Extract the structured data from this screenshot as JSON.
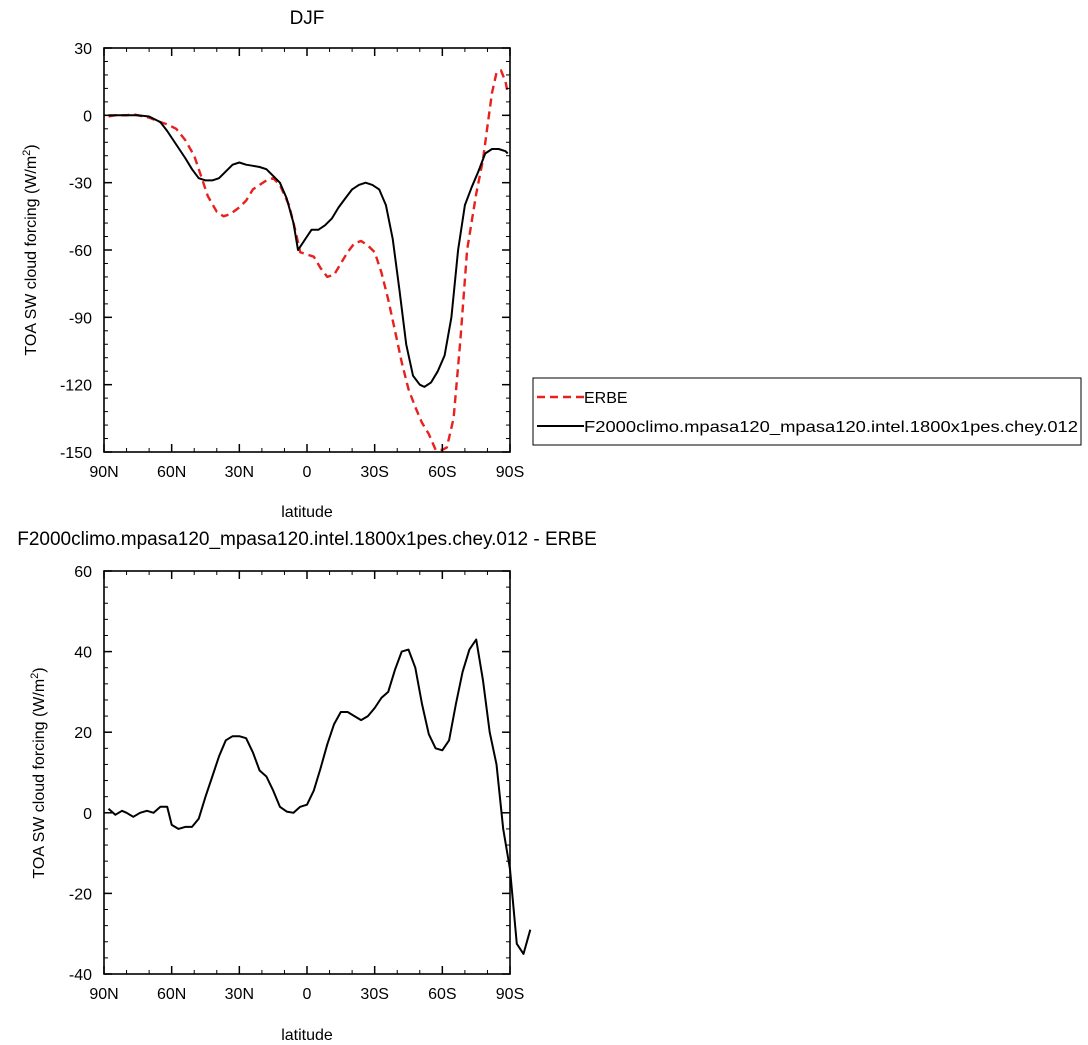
{
  "chart_data": [
    {
      "type": "line",
      "title": "DJF",
      "xlabel": "latitude",
      "ylabel": "TOA SW cloud forcing (W/m",
      "ylabel_sup": "2",
      "ylabel_end": ")",
      "xlim": [
        -90,
        90
      ],
      "ylim": [
        -150,
        30
      ],
      "x_ticks": [
        -90,
        -60,
        -30,
        0,
        30,
        60,
        90
      ],
      "x_tick_labels": [
        "90N",
        "60N",
        "30N",
        "0",
        "30S",
        "60S",
        "90S"
      ],
      "y_ticks": [
        30,
        0,
        -30,
        -60,
        -90,
        -120,
        -150
      ],
      "y_tick_labels": [
        "30",
        "0",
        "-30",
        "-60",
        "-90",
        "-120",
        "-150"
      ],
      "legend_position": "right",
      "series": [
        {
          "name": "ERBE",
          "color": "#e8201e",
          "dash": "dashed",
          "points": [
            [
              -88,
              -0.5
            ],
            [
              -85,
              0
            ],
            [
              -80,
              0
            ],
            [
              -77,
              0.5
            ],
            [
              -75,
              0
            ],
            [
              -70,
              -1
            ],
            [
              -65,
              -3
            ],
            [
              -62,
              -4
            ],
            [
              -58,
              -6
            ],
            [
              -54,
              -11
            ],
            [
              -50,
              -18
            ],
            [
              -47,
              -27
            ],
            [
              -44,
              -36
            ],
            [
              -40,
              -43
            ],
            [
              -37,
              -45
            ],
            [
              -34,
              -44
            ],
            [
              -30,
              -41
            ],
            [
              -27,
              -38
            ],
            [
              -24,
              -33
            ],
            [
              -21,
              -31
            ],
            [
              -18,
              -29
            ],
            [
              -15,
              -28
            ],
            [
              -12,
              -31
            ],
            [
              -8,
              -40
            ],
            [
              -5,
              -52
            ],
            [
              -3,
              -61
            ],
            [
              0,
              -62
            ],
            [
              3,
              -63
            ],
            [
              6,
              -68
            ],
            [
              9,
              -72
            ],
            [
              12,
              -71
            ],
            [
              15,
              -66
            ],
            [
              18,
              -61
            ],
            [
              21,
              -57
            ],
            [
              24,
              -56
            ],
            [
              27,
              -58
            ],
            [
              30,
              -61
            ],
            [
              33,
              -70
            ],
            [
              36,
              -82
            ],
            [
              39,
              -96
            ],
            [
              42,
              -110
            ],
            [
              45,
              -122
            ],
            [
              48,
              -130
            ],
            [
              51,
              -137
            ],
            [
              54,
              -142
            ],
            [
              57,
              -149
            ],
            [
              60,
              -149
            ],
            [
              62,
              -148
            ],
            [
              65,
              -135
            ],
            [
              68,
              -100
            ],
            [
              71,
              -60
            ],
            [
              75,
              -35
            ],
            [
              78,
              -20
            ],
            [
              80,
              -5
            ],
            [
              82,
              10
            ],
            [
              84,
              19
            ],
            [
              86,
              20
            ],
            [
              88,
              15
            ],
            [
              89,
              10
            ]
          ]
        },
        {
          "name": "F2000climo.mpasa120_mpasa120.intel.1800x1pes.chey.012",
          "color": "#000000",
          "dash": "solid",
          "points": [
            [
              -88,
              0
            ],
            [
              -85,
              0
            ],
            [
              -80,
              0
            ],
            [
              -77,
              0
            ],
            [
              -75,
              0
            ],
            [
              -70,
              -0.5
            ],
            [
              -65,
              -3
            ],
            [
              -62,
              -7
            ],
            [
              -58,
              -13
            ],
            [
              -54,
              -19
            ],
            [
              -51,
              -24
            ],
            [
              -48,
              -28
            ],
            [
              -45,
              -29
            ],
            [
              -42,
              -29
            ],
            [
              -39,
              -28
            ],
            [
              -36,
              -25
            ],
            [
              -33,
              -22
            ],
            [
              -30,
              -21
            ],
            [
              -27,
              -22
            ],
            [
              -24,
              -22.5
            ],
            [
              -21,
              -23
            ],
            [
              -18,
              -24
            ],
            [
              -15,
              -27
            ],
            [
              -12,
              -30
            ],
            [
              -9,
              -37
            ],
            [
              -6,
              -48
            ],
            [
              -4,
              -60
            ],
            [
              -2,
              -57
            ],
            [
              0,
              -54
            ],
            [
              2,
              -51
            ],
            [
              5,
              -51
            ],
            [
              8,
              -49
            ],
            [
              11,
              -46
            ],
            [
              14,
              -41
            ],
            [
              17,
              -37
            ],
            [
              20,
              -33
            ],
            [
              23,
              -31
            ],
            [
              26,
              -30
            ],
            [
              29,
              -31
            ],
            [
              32,
              -33
            ],
            [
              35,
              -40
            ],
            [
              38,
              -55
            ],
            [
              41,
              -78
            ],
            [
              44,
              -102
            ],
            [
              47,
              -116
            ],
            [
              50,
              -120
            ],
            [
              52,
              -121
            ],
            [
              55,
              -119
            ],
            [
              58,
              -114
            ],
            [
              61,
              -107
            ],
            [
              64,
              -90
            ],
            [
              67,
              -60
            ],
            [
              70,
              -40
            ],
            [
              73,
              -32
            ],
            [
              76,
              -25
            ],
            [
              79,
              -17
            ],
            [
              82,
              -15
            ],
            [
              85,
              -15
            ],
            [
              88,
              -16
            ],
            [
              89,
              -17
            ]
          ]
        }
      ]
    },
    {
      "type": "line",
      "title": "F2000climo.mpasa120_mpasa120.intel.1800x1pes.chey.012 - ERBE",
      "xlabel": "latitude",
      "ylabel": "TOA SW cloud forcing (W/m",
      "ylabel_sup": "2",
      "ylabel_end": ")",
      "xlim": [
        -90,
        90
      ],
      "ylim": [
        -40,
        60
      ],
      "x_ticks": [
        -90,
        -60,
        -30,
        0,
        30,
        60,
        90
      ],
      "x_tick_labels": [
        "90N",
        "60N",
        "30N",
        "0",
        "30S",
        "60S",
        "90S"
      ],
      "y_ticks": [
        60,
        40,
        20,
        0,
        -20,
        -40
      ],
      "y_tick_labels": [
        "60",
        "40",
        "20",
        "0",
        "-20",
        "-40"
      ],
      "series": [
        {
          "color": "#000000",
          "dash": "solid",
          "points": [
            [
              -88,
              1
            ],
            [
              -85,
              -0.5
            ],
            [
              -82,
              0.5
            ],
            [
              -80,
              0
            ],
            [
              -77,
              -1
            ],
            [
              -74,
              0
            ],
            [
              -71,
              0.5
            ],
            [
              -68,
              0
            ],
            [
              -65,
              1.5
            ],
            [
              -62,
              1.5
            ],
            [
              -60,
              -3
            ],
            [
              -57,
              -4
            ],
            [
              -54,
              -3.5
            ],
            [
              -51,
              -3.5
            ],
            [
              -48,
              -1.5
            ],
            [
              -45,
              4
            ],
            [
              -42,
              9
            ],
            [
              -39,
              14
            ],
            [
              -36,
              18
            ],
            [
              -33,
              19
            ],
            [
              -30,
              19
            ],
            [
              -27,
              18.5
            ],
            [
              -24,
              15
            ],
            [
              -21,
              10.5
            ],
            [
              -18,
              9
            ],
            [
              -15,
              5.5
            ],
            [
              -12,
              1.5
            ],
            [
              -9,
              0.3
            ],
            [
              -6,
              0
            ],
            [
              -3,
              1.5
            ],
            [
              0,
              2
            ],
            [
              3,
              5.5
            ],
            [
              6,
              11
            ],
            [
              9,
              17
            ],
            [
              12,
              22
            ],
            [
              15,
              25
            ],
            [
              18,
              25
            ],
            [
              21,
              24
            ],
            [
              24,
              23
            ],
            [
              27,
              24
            ],
            [
              30,
              26
            ],
            [
              33,
              28.5
            ],
            [
              36,
              30
            ],
            [
              39,
              35.5
            ],
            [
              42,
              40
            ],
            [
              45,
              40.5
            ],
            [
              48,
              36
            ],
            [
              51,
              27
            ],
            [
              54,
              19.5
            ],
            [
              57,
              16
            ],
            [
              60,
              15.5
            ],
            [
              63,
              18
            ],
            [
              66,
              27
            ],
            [
              69,
              35
            ],
            [
              72,
              40.5
            ],
            [
              75,
              43
            ],
            [
              78,
              33
            ],
            [
              81,
              20
            ],
            [
              84,
              12
            ],
            [
              87,
              -4
            ],
            [
              90,
              -14
            ],
            [
              93,
              -32.5
            ],
            [
              96,
              -35
            ],
            [
              99,
              -29
            ]
          ]
        }
      ]
    }
  ]
}
